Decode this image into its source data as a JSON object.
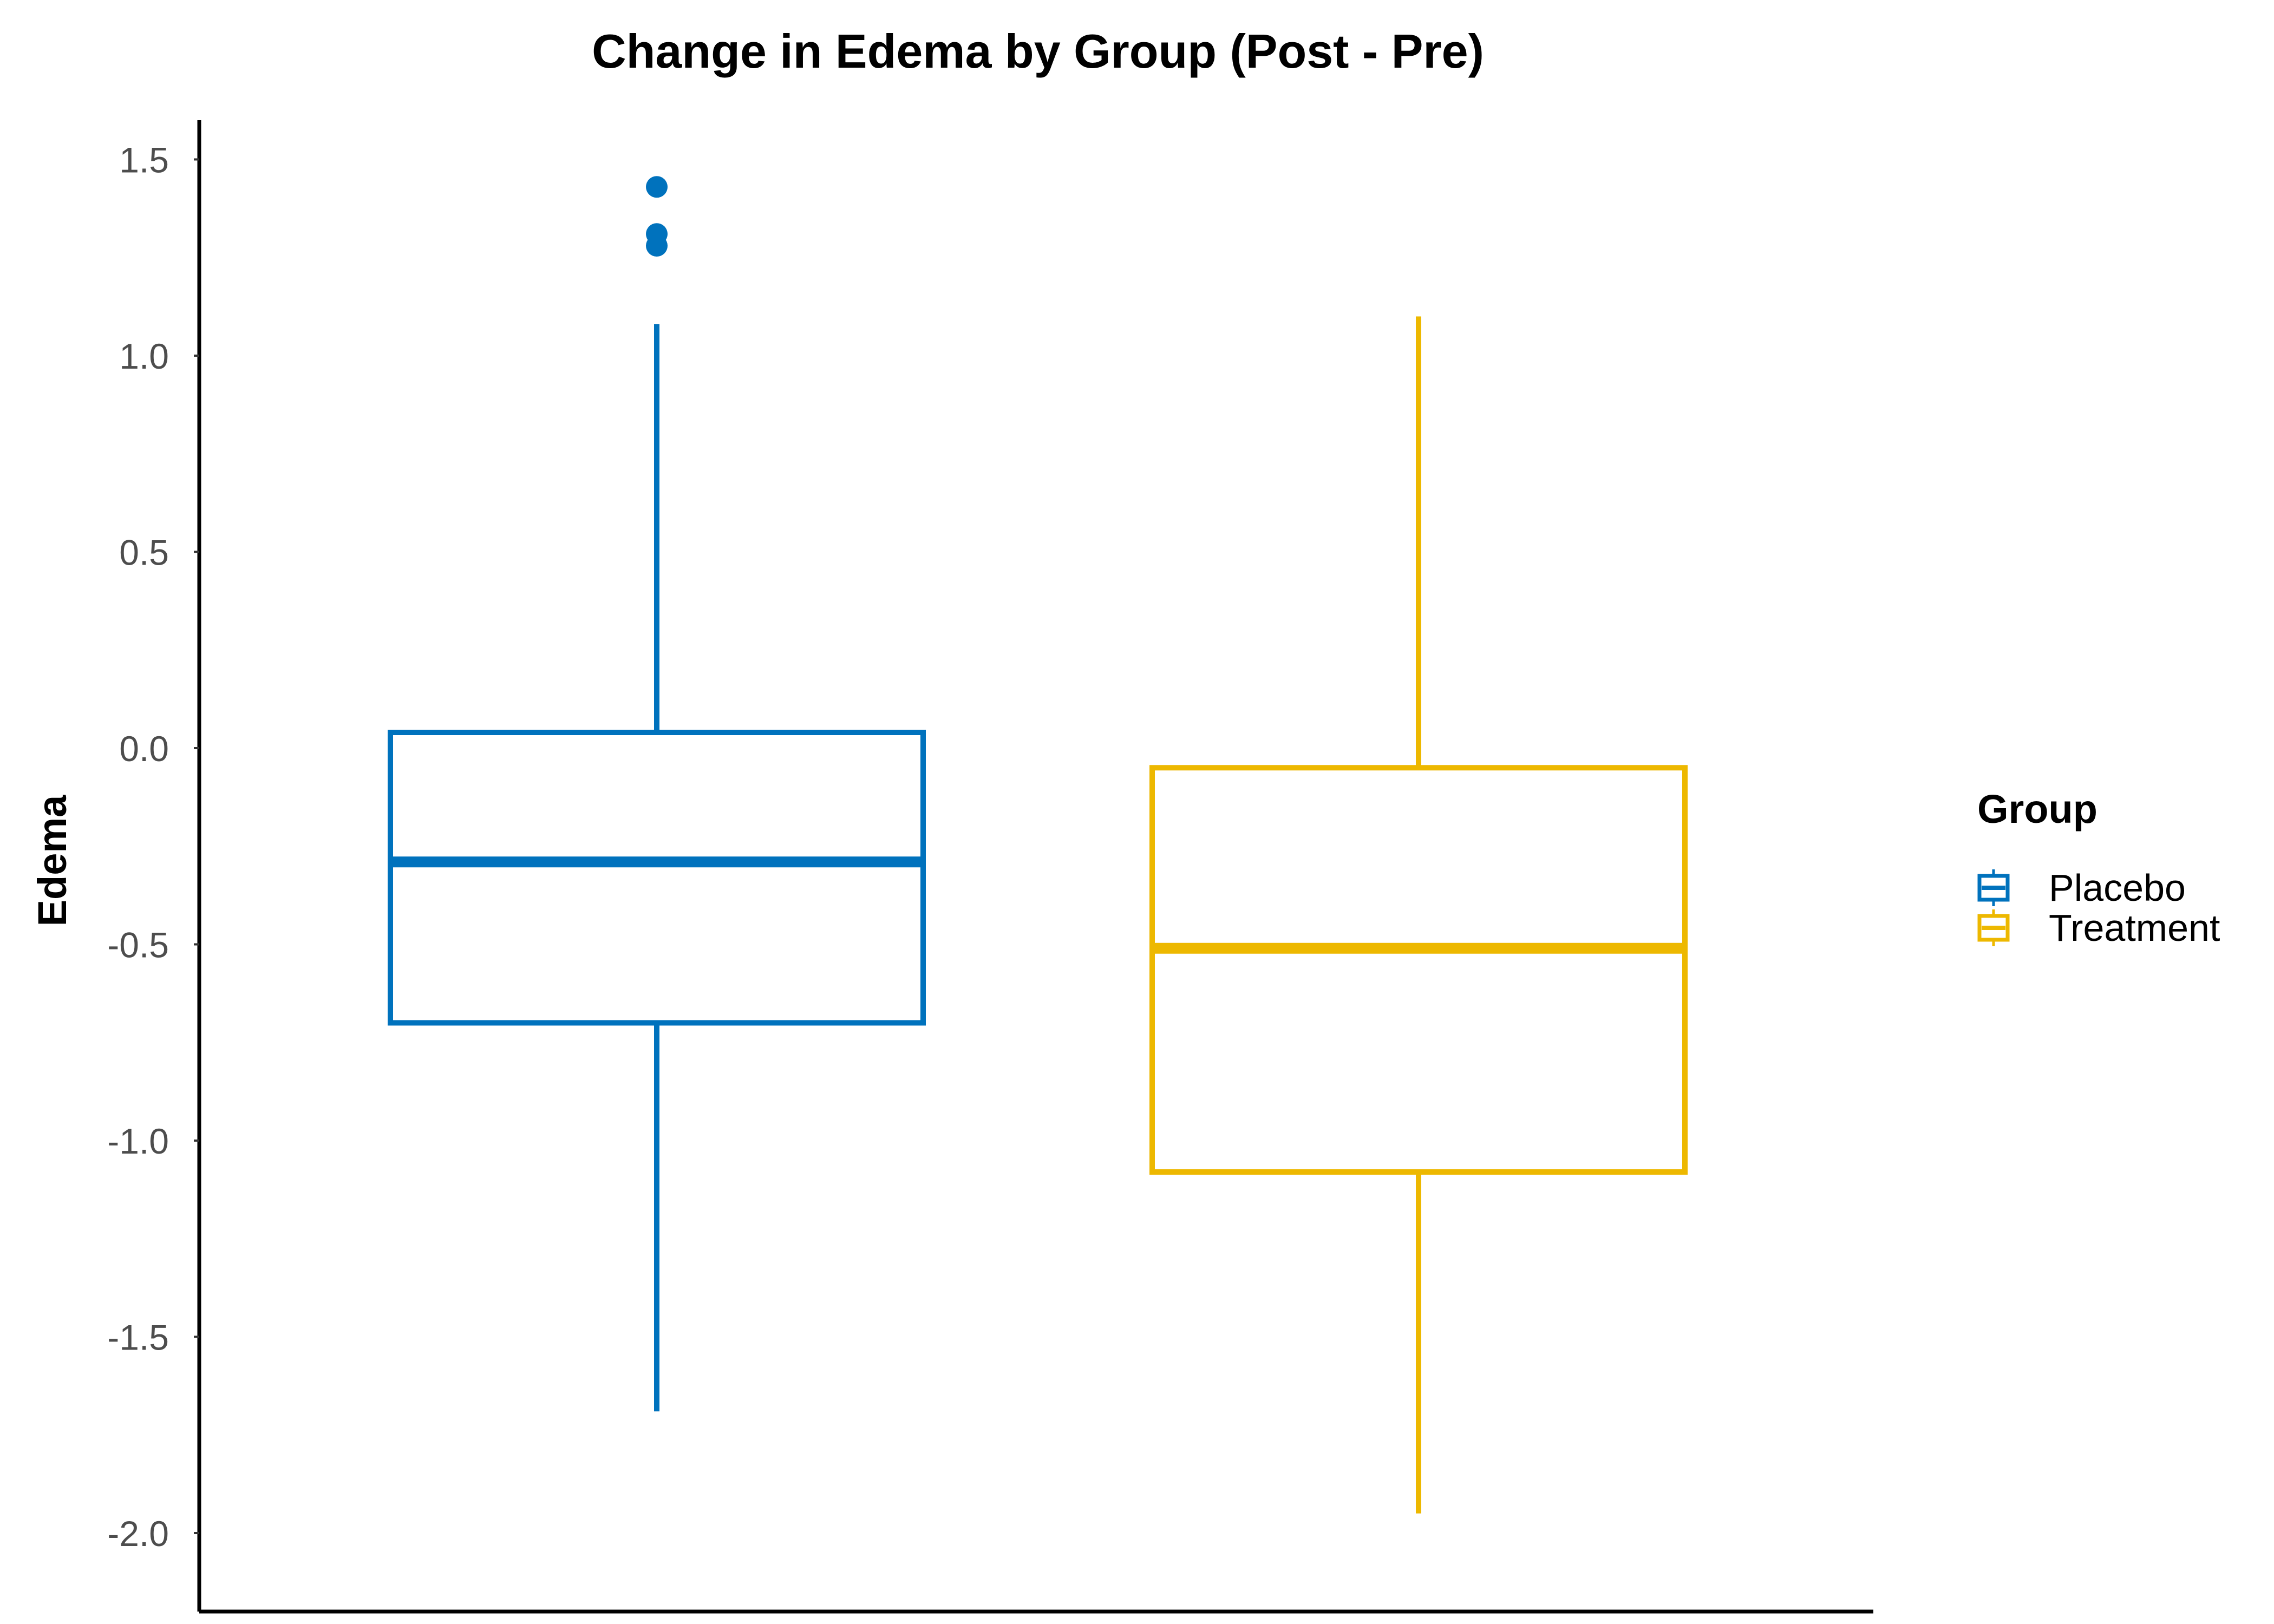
{
  "chart_data": {
    "type": "boxplot",
    "title": "Change in Edema by Group (Post - Pre)",
    "xlabel": "",
    "ylabel": "Edema",
    "ylim": [
      -2.2,
      1.6
    ],
    "yticks": [
      1.5,
      1.0,
      0.5,
      0.0,
      -0.5,
      -1.0,
      -1.5,
      -2.0
    ],
    "ytick_labels": [
      "1.5",
      "1.0",
      "0.5",
      "0.0",
      "-0.5",
      "-1.0",
      "-1.5",
      "-2.0"
    ],
    "grid": false,
    "legend": {
      "title": "Group",
      "placement": "right",
      "entries": [
        "Placebo",
        "Treatment"
      ]
    },
    "series": [
      {
        "name": "Placebo",
        "color": "#0072BD",
        "whisker_low": -1.69,
        "q1": -0.7,
        "median": -0.29,
        "q3": 0.04,
        "whisker_high": 1.08,
        "outliers": [
          1.43,
          1.31,
          1.28
        ]
      },
      {
        "name": "Treatment",
        "color": "#EDB800",
        "whisker_low": -1.95,
        "q1": -1.08,
        "median": -0.51,
        "q3": -0.05,
        "whisker_high": 1.1,
        "outliers": []
      }
    ]
  }
}
